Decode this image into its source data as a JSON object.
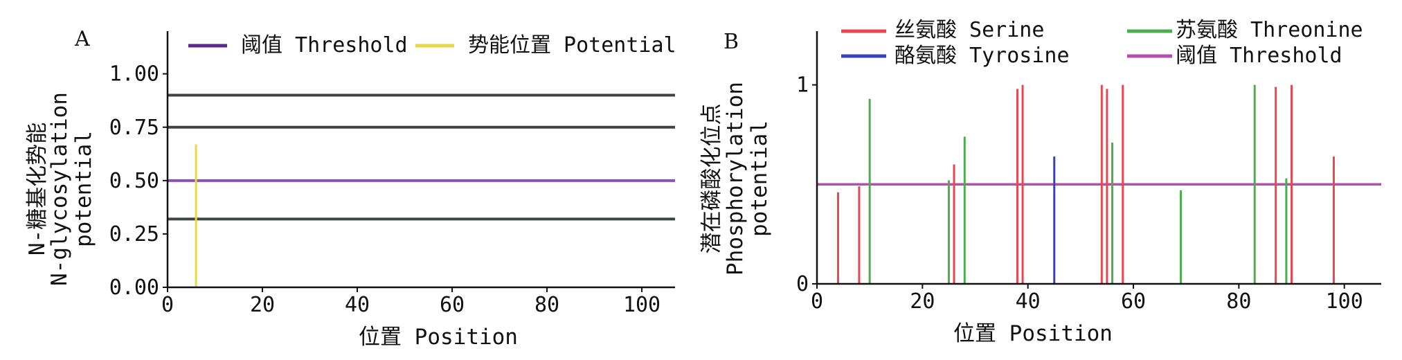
{
  "chart_data": [
    {
      "panel_label": "A",
      "type": "bar",
      "xlabel": "位置 Position",
      "ylabel_lines": [
        "N-糖基化势能",
        "N-glycosylation",
        "potential"
      ],
      "xlim": [
        0,
        107
      ],
      "ylim": [
        0,
        1.2
      ],
      "xticks": [
        "0",
        "20",
        "40",
        "60",
        "80",
        "100"
      ],
      "yticks": [
        "0.00",
        "0.25",
        "0.50",
        "0.75",
        "1.00"
      ],
      "legend_position": "top",
      "legend": [
        {
          "label": "阈值 Threshold",
          "color": "#5b2a8c"
        },
        {
          "label": "势能位置 Potential",
          "color": "#e6d84a"
        }
      ],
      "series": [
        {
          "name": "势能位置 Potential",
          "color": "#e6d84a",
          "x": [
            6
          ],
          "values": [
            0.67
          ]
        }
      ],
      "hlines": [
        {
          "name": "阈值 Threshold",
          "y": 0.5,
          "color": "#8a4fc0"
        },
        {
          "y": 0.32,
          "color": "#3f4346"
        },
        {
          "y": 0.75,
          "color": "#3f4346"
        },
        {
          "y": 0.9,
          "color": "#3f4346"
        }
      ]
    },
    {
      "panel_label": "B",
      "type": "bar",
      "xlabel": "位置 Position",
      "ylabel_lines": [
        "潜在磷酸化位点",
        "Phosphorylation",
        "potential"
      ],
      "xlim": [
        0,
        107
      ],
      "ylim": [
        0,
        1.27
      ],
      "xticks": [
        "0",
        "20",
        "40",
        "60",
        "80",
        "100"
      ],
      "yticks": [
        "0",
        "1"
      ],
      "legend_position": "top",
      "legend": [
        {
          "label": "丝氨酸 Serine",
          "color": "#e8474f"
        },
        {
          "label": "苏氨酸 Threonine",
          "color": "#4cad4c"
        },
        {
          "label": "酪氨酸 Tyrosine",
          "color": "#3a3fc0"
        },
        {
          "label": "阈值 Threshold",
          "color": "#b44fb0"
        }
      ],
      "series": [
        {
          "name": "丝氨酸 Serine",
          "color": "#e8474f",
          "x": [
            4,
            8,
            26,
            38,
            39,
            54,
            55,
            58,
            87,
            90,
            98
          ],
          "values": [
            0.46,
            0.49,
            0.6,
            0.98,
            1.0,
            1.0,
            0.98,
            1.0,
            0.99,
            1.0,
            0.64
          ]
        },
        {
          "name": "苏氨酸 Threonine",
          "color": "#4cad4c",
          "x": [
            10,
            25,
            28,
            56,
            69,
            83,
            89
          ],
          "values": [
            0.93,
            0.52,
            0.74,
            0.71,
            0.47,
            1.0,
            0.53
          ]
        },
        {
          "name": "酪氨酸 Tyrosine",
          "color": "#3a3fc0",
          "x": [
            45
          ],
          "values": [
            0.64
          ]
        }
      ],
      "hlines": [
        {
          "name": "阈值 Threshold",
          "y": 0.5,
          "color": "#b44fb0"
        }
      ]
    }
  ]
}
